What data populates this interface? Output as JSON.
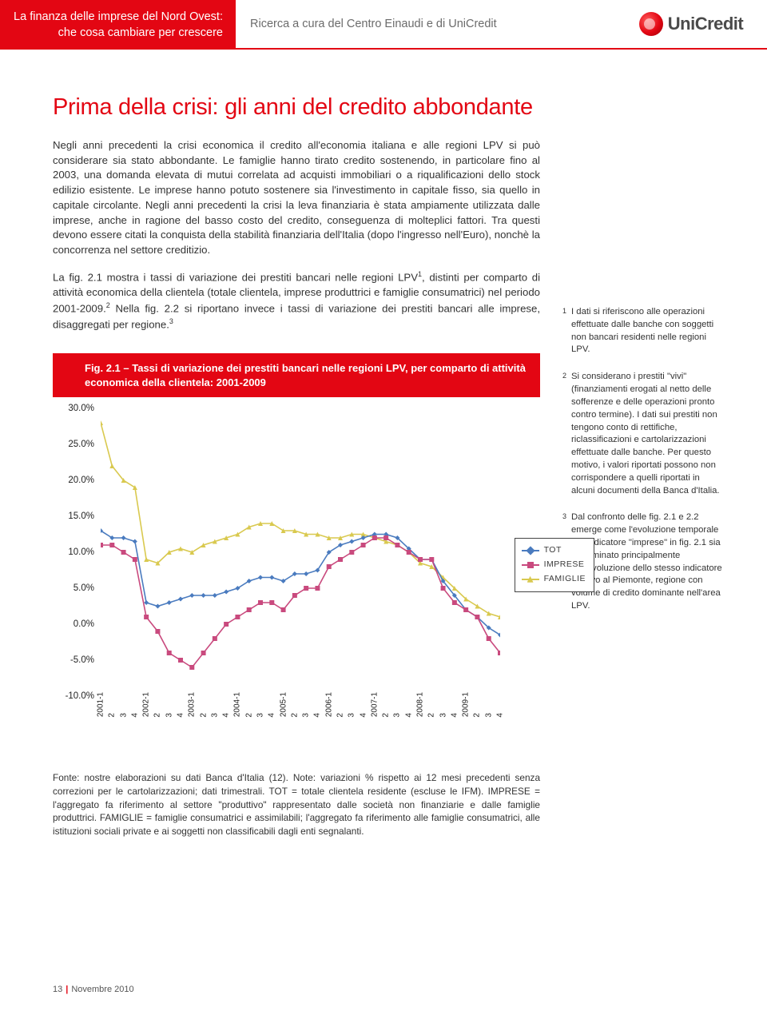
{
  "header": {
    "left_line1": "La finanza delle imprese del Nord Ovest:",
    "left_line2": "che cosa cambiare per crescere",
    "mid": "Ricerca a cura del Centro Einaudi e di UniCredit",
    "brand": "UniCredit"
  },
  "title": "Prima della crisi: gli anni del credito abbondante",
  "paragraphs": {
    "p1": "Negli anni precedenti la crisi economica il credito all'economia italiana e alle regioni LPV si può considerare sia stato abbondante. Le famiglie hanno tirato credito sostenendo, in particolare fino al 2003, una domanda elevata di mutui correlata ad acquisti immobiliari o a riqualificazioni dello stock edilizio esistente. Le imprese hanno potuto sostenere sia l'investimento in capitale fisso, sia quello in capitale circolante. Negli anni precedenti la crisi la leva finanziaria è stata ampiamente utilizzata dalle imprese, anche in ragione del basso costo del credito, conseguenza di molteplici fattori. Tra questi devono essere citati la conquista della stabilità finanziaria dell'Italia (dopo l'ingresso nell'Euro), nonchè la concorrenza nel settore creditizio.",
    "p2_a": "La fig. 2.1 mostra i tassi di variazione dei prestiti bancari nelle regioni LPV",
    "p2_b": ", distinti per comparto di attività economica della clientela (totale clientela, imprese produttrici e famiglie consumatrici) nel periodo 2001-2009.",
    "p2_c": " Nella fig. 2.2 si riportano invece i tassi di variazione dei prestiti bancari alle imprese, disaggregati per regione."
  },
  "fig_caption": "Fig. 2.1 – Tassi di variazione dei prestiti bancari nelle regioni LPV, per comparto di attività economica della clientela: 2001-2009",
  "chart": {
    "type": "line",
    "ylim": [
      -10,
      30
    ],
    "ytick_step": 5,
    "y_labels": [
      "30.0%",
      "25.0%",
      "20.0%",
      "15.0%",
      "10.0%",
      "5.0%",
      "0.0%",
      "-5.0%",
      "-10.0%"
    ],
    "x_years": [
      "2001-1",
      "2002-1",
      "2003-1",
      "2004-1",
      "2005-1",
      "2006-1",
      "2007-1",
      "2008-1",
      "2009-1"
    ],
    "x_sub": [
      "2",
      "3",
      "4"
    ],
    "n_points": 36,
    "colors": {
      "tot": "#4a7bbf",
      "imprese": "#c94a7e",
      "famiglie": "#d9c94f",
      "grid": "#ffffff",
      "background": "#ffffff",
      "axis": "#444444"
    },
    "line_width": 1.6,
    "marker_size": 6,
    "series": {
      "tot": [
        13,
        12,
        12,
        11.5,
        3,
        2.5,
        3,
        3.5,
        4,
        4,
        4,
        4.5,
        5,
        6,
        6.5,
        6.5,
        6,
        7,
        7,
        7.5,
        10,
        11,
        11.5,
        12,
        12.5,
        12.5,
        12,
        10.5,
        9,
        9,
        6,
        4,
        2,
        1,
        -0.5,
        -1.5
      ],
      "imprese": [
        11,
        11,
        10,
        9,
        1,
        -1,
        -4,
        -5,
        -6,
        -4,
        -2,
        0,
        1,
        2,
        3,
        3,
        2,
        4,
        5,
        5,
        8,
        9,
        10,
        11,
        12,
        12,
        11,
        10,
        9,
        9,
        5,
        3,
        2,
        1,
        -2,
        -4
      ],
      "famiglie": [
        28,
        22,
        20,
        19,
        9,
        8.5,
        10,
        10.5,
        10,
        11,
        11.5,
        12,
        12.5,
        13.5,
        14,
        14,
        13,
        13,
        12.5,
        12.5,
        12,
        12,
        12.5,
        12.5,
        12,
        11.5,
        11,
        10,
        8.5,
        8,
        6.5,
        5,
        3.5,
        2.5,
        1.5,
        1
      ]
    },
    "legend": {
      "tot": "TOT",
      "imprese": "IMPRESE",
      "famiglie": "FAMIGLIE"
    }
  },
  "source": "Fonte: nostre elaborazioni su dati Banca d'Italia (12). Note: variazioni % rispetto ai 12 mesi precedenti senza correzioni per le cartolarizzazioni; dati trimestrali. TOT = totale clientela residente (escluse le IFM). IMPRESE = l'aggregato fa riferimento al settore \"produttivo\" rappresentato dalle società non finanziarie e dalle famiglie produttrici. FAMIGLIE = famiglie consumatrici e assimilabili; l'aggregato fa riferimento alle famiglie consumatrici, alle istituzioni sociali private e ai soggetti non classificabili dagli enti segnalanti.",
  "footnotes": {
    "n1": "I dati si riferiscono alle operazioni effettuate dalle banche con soggetti non bancari residenti nelle regioni LPV.",
    "n2": "Si considerano i prestiti \"vivi\" (finanziamenti erogati al netto delle sofferenze e delle operazioni pronto contro termine). I dati sui prestiti non tengono conto di rettifiche, riclassificazioni e cartolarizzazioni effettuate dalle banche. Per questo motivo, i valori riportati possono non corrispondere a quelli riportati in alcuni documenti della Banca d'Italia.",
    "n3": "Dal confronto delle fig. 2.1 e 2.2 emerge come l'evoluzione temporale dell'indicatore \"imprese\" in fig. 2.1 sia determinato principalmente dall'evoluzione dello stesso indicatore relativo al Piemonte, regione con volume di credito dominante nell'area LPV."
  },
  "footer": {
    "page": "13",
    "date": "Novembre  2010"
  }
}
